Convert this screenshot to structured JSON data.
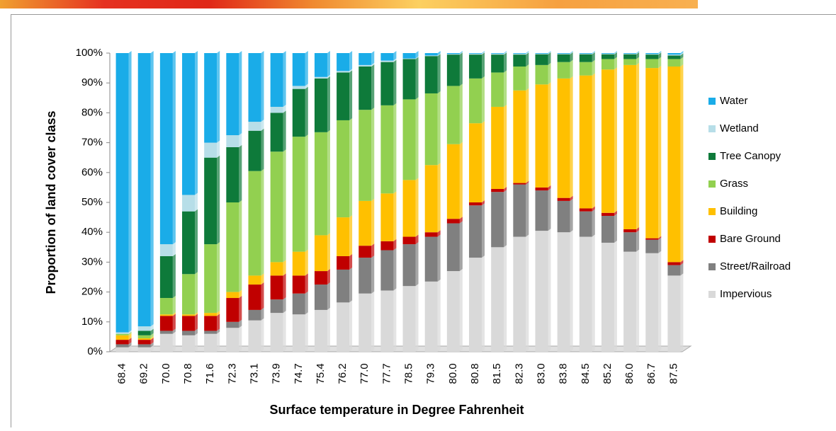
{
  "chart_data": {
    "type": "bar",
    "stacked": true,
    "x_label": "Surface temperature in Degree Fahrenheit",
    "y_label": "Proportion of land cover class",
    "categories": [
      "68.4",
      "69.2",
      "70.0",
      "70.8",
      "71.6",
      "72.3",
      "73.1",
      "73.9",
      "74.7",
      "75.4",
      "76.2",
      "77.0",
      "77.7",
      "78.5",
      "79.3",
      "80.0",
      "80.8",
      "81.5",
      "82.3",
      "83.0",
      "83.8",
      "84.5",
      "85.2",
      "86.0",
      "86.7",
      "87.5"
    ],
    "ylim": [
      0,
      100
    ],
    "yticks": [
      {
        "value": 0,
        "label": "0%"
      },
      {
        "value": 10,
        "label": "10%"
      },
      {
        "value": 20,
        "label": "20%"
      },
      {
        "value": 30,
        "label": "30%"
      },
      {
        "value": 40,
        "label": "40%"
      },
      {
        "value": 50,
        "label": "50%"
      },
      {
        "value": 60,
        "label": "60%"
      },
      {
        "value": 70,
        "label": "70%"
      },
      {
        "value": 80,
        "label": "80%"
      },
      {
        "value": 90,
        "label": "90%"
      },
      {
        "value": 100,
        "label": "100%"
      }
    ],
    "legend": "right",
    "series": [
      {
        "name": "Impervious",
        "color": "#d9d9d9",
        "values": [
          1.5,
          1.5,
          6,
          5.5,
          6,
          8,
          10.5,
          13,
          12.5,
          14,
          16.5,
          19.5,
          20.5,
          22,
          23.5,
          27,
          31.5,
          35,
          38.5,
          40.5,
          40,
          38.5,
          36.5,
          33.5,
          33,
          25.5
        ]
      },
      {
        "name": "Street/Railroad",
        "color": "#808080",
        "values": [
          1,
          1,
          1,
          1.5,
          1,
          2,
          3.5,
          4.5,
          7,
          8.5,
          11,
          12,
          13.5,
          14,
          15,
          16,
          17.5,
          18.5,
          17.5,
          13.5,
          10.5,
          8.5,
          9,
          6.5,
          4.5,
          3.5
        ]
      },
      {
        "name": "Bare Ground",
        "color": "#c00000",
        "values": [
          1.5,
          1.5,
          5,
          5,
          5,
          8,
          8.5,
          8,
          6,
          4.5,
          4.5,
          4,
          3,
          2.5,
          1.5,
          1.5,
          1,
          1,
          0.5,
          1,
          1,
          1,
          1,
          1,
          0.5,
          1
        ]
      },
      {
        "name": "Building",
        "color": "#ffc000",
        "values": [
          1.5,
          0.5,
          0.5,
          0.5,
          1,
          2,
          3,
          4.5,
          8,
          12,
          13,
          15,
          16,
          19,
          22.5,
          25,
          26.5,
          27.5,
          31,
          34.5,
          40,
          44.5,
          48,
          55,
          57,
          65.5
        ]
      },
      {
        "name": "Grass",
        "color": "#92d050",
        "values": [
          0.5,
          1,
          5.5,
          13.5,
          23,
          30,
          35,
          37,
          38.5,
          34.5,
          32.5,
          30.5,
          29.5,
          27,
          24,
          19.5,
          15,
          11.5,
          8,
          6.5,
          5.5,
          4.5,
          3.5,
          2,
          3,
          2.5
        ]
      },
      {
        "name": "Tree Canopy",
        "color": "#0e7a3a",
        "values": [
          0,
          1.5,
          14,
          21,
          29,
          18.5,
          13.5,
          13,
          16,
          18,
          16,
          14.5,
          14.5,
          13.5,
          12.5,
          10.5,
          8,
          6,
          4,
          3.6,
          2.6,
          2.6,
          1.6,
          1.6,
          1.5,
          1.2
        ]
      },
      {
        "name": "Wetland",
        "color": "#b7dee8",
        "values": [
          0.5,
          1.5,
          4,
          5.5,
          5,
          4,
          3,
          2,
          1,
          0.5,
          0.5,
          0.5,
          0.5,
          0.2,
          0.2,
          0.2,
          0.3,
          0.3,
          0.3,
          0.2,
          0.2,
          0.2,
          0.2,
          0.2,
          0.2,
          0.3
        ]
      },
      {
        "name": "Water",
        "color": "#1aace8",
        "values": [
          93.5,
          91.5,
          64,
          47.5,
          30,
          27.5,
          23,
          18,
          11,
          8,
          6,
          4,
          2.5,
          1.8,
          0.8,
          0.3,
          0.2,
          0.2,
          0.2,
          0.2,
          0.2,
          0.2,
          0.2,
          0.2,
          0.3,
          0.5
        ]
      }
    ]
  }
}
